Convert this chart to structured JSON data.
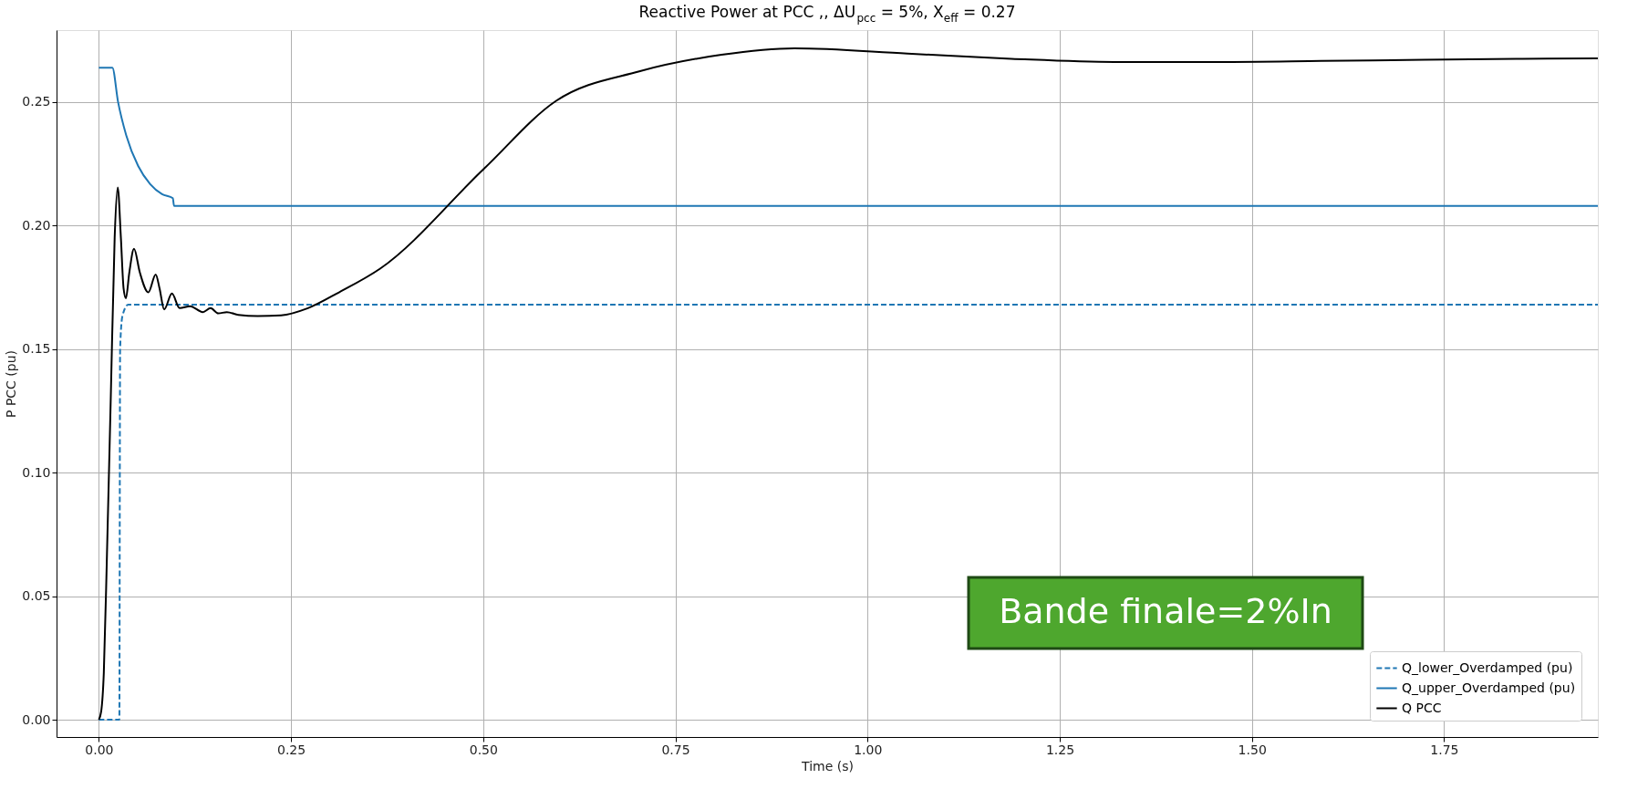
{
  "chart_data": {
    "type": "line",
    "title": "Reactive Power at PCC ,, ΔU$_{pcc}$ = 5%, X$_{eff}$ = 0.27",
    "xlabel": "Time (s)",
    "ylabel": "P PCC (pu)",
    "xlim": [
      -0.055,
      1.95
    ],
    "ylim": [
      -0.007,
      0.279
    ],
    "xticks": [
      {
        "value": 0,
        "label": "0.00"
      },
      0.25,
      {
        "value": 0.5,
        "label": "0.50"
      },
      0.75,
      {
        "value": 1,
        "label": "1.00"
      },
      1.25,
      {
        "value": 1.5,
        "label": "1.50"
      },
      1.75
    ],
    "yticks": [
      {
        "value": 0,
        "label": "0.00"
      },
      0.05,
      {
        "value": 0.1,
        "label": "0.10"
      },
      0.15,
      {
        "value": 0.2,
        "label": "0.20"
      },
      0.25
    ],
    "grid": true,
    "legend": "bottom right",
    "annotations": [
      "Bande finale=2%In"
    ],
    "series": [
      {
        "name": "Q_lower_Overdamped (pu)",
        "color": "#1f77b4",
        "line_style": "dashed",
        "x": [
          0,
          0.0267,
          0.0277,
          0.0307,
          0.0382,
          1.95
        ],
        "values": [
          0,
          0,
          0.15,
          0.1633,
          0.1679,
          0.1679
        ]
      },
      {
        "name": "Q_upper_Overdamped (pu)",
        "color": "#1f77b4",
        "line_style": "solid",
        "x": [
          0,
          0.0176,
          0.025,
          0.0357,
          0.0512,
          0.0668,
          0.0823,
          0.0963,
          0.0978,
          1.95
        ],
        "values": [
          0.2638,
          0.2638,
          0.25,
          0.2364,
          0.224,
          0.2167,
          0.2126,
          0.211,
          0.2079,
          0.2079
        ]
      },
      {
        "name": "Q PCC",
        "color": "#000000",
        "line_style": "solid",
        "x": [
          0,
          0.003,
          0.0065,
          0.0106,
          0.0156,
          0.0206,
          0.0246,
          0.0287,
          0.0322,
          0.0352,
          0.0397,
          0.0458,
          0.0533,
          0.0644,
          0.074,
          0.079,
          0.085,
          0.0951,
          0.1051,
          0.1187,
          0.1353,
          0.1454,
          0.1554,
          0.1665,
          0.1816,
          0.2067,
          0.237,
          0.272,
          0.3124,
          0.366,
          0.501,
          0.595,
          0.703,
          0.81,
          0.905,
          1.052,
          1.187,
          1.321,
          1.456,
          1.59,
          1.724,
          1.852,
          1.95
        ],
        "values": [
          0,
          0.0032,
          0.019,
          0.067,
          0.131,
          0.195,
          0.2153,
          0.195,
          0.1745,
          0.1705,
          0.181,
          0.1905,
          0.181,
          0.1729,
          0.1801,
          0.1745,
          0.166,
          0.1724,
          0.1665,
          0.1673,
          0.1649,
          0.1665,
          0.1644,
          0.1649,
          0.1638,
          0.1633,
          0.1636,
          0.1665,
          0.1729,
          0.1825,
          0.2229,
          0.2504,
          0.2623,
          0.269,
          0.2716,
          0.2695,
          0.2674,
          0.2661,
          0.2661,
          0.2665,
          0.267,
          0.2674,
          0.2676
        ]
      }
    ]
  }
}
